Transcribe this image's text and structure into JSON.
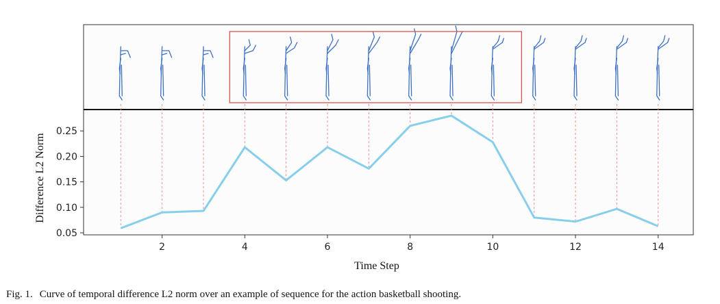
{
  "chart_data": {
    "type": "line",
    "title": "",
    "xlabel": "Time Step",
    "ylabel": "Difference L2 Norm",
    "x": [
      1,
      2,
      3,
      4,
      5,
      6,
      7,
      8,
      9,
      10,
      11,
      12,
      13,
      14
    ],
    "series": [
      {
        "name": "Temporal difference L2 norm",
        "color": "#87ceeb",
        "values": [
          0.059,
          0.09,
          0.093,
          0.218,
          0.153,
          0.218,
          0.176,
          0.26,
          0.28,
          0.228,
          0.08,
          0.072,
          0.097,
          0.063
        ]
      }
    ],
    "xlim": [
      0.1,
      14.85
    ],
    "ylim": [
      0.046,
      0.292
    ],
    "xticks": [
      2,
      4,
      6,
      8,
      10,
      12,
      14
    ],
    "yticks": [
      0.05,
      0.1,
      0.15,
      0.2,
      0.25
    ],
    "ytick_labels": [
      "0.05",
      "0.10",
      "0.15",
      "0.20",
      "0.25"
    ],
    "highlight_range": [
      4,
      10
    ],
    "highlight_color": "#d9534f",
    "skeleton_color": "#3b6fc4",
    "guide_color": "#f08080",
    "grid": false,
    "legend": "none"
  },
  "caption": {
    "label": "Fig. 1.",
    "text": "Curve of temporal difference L2 norm over an example of sequence for the action basketball shooting."
  }
}
